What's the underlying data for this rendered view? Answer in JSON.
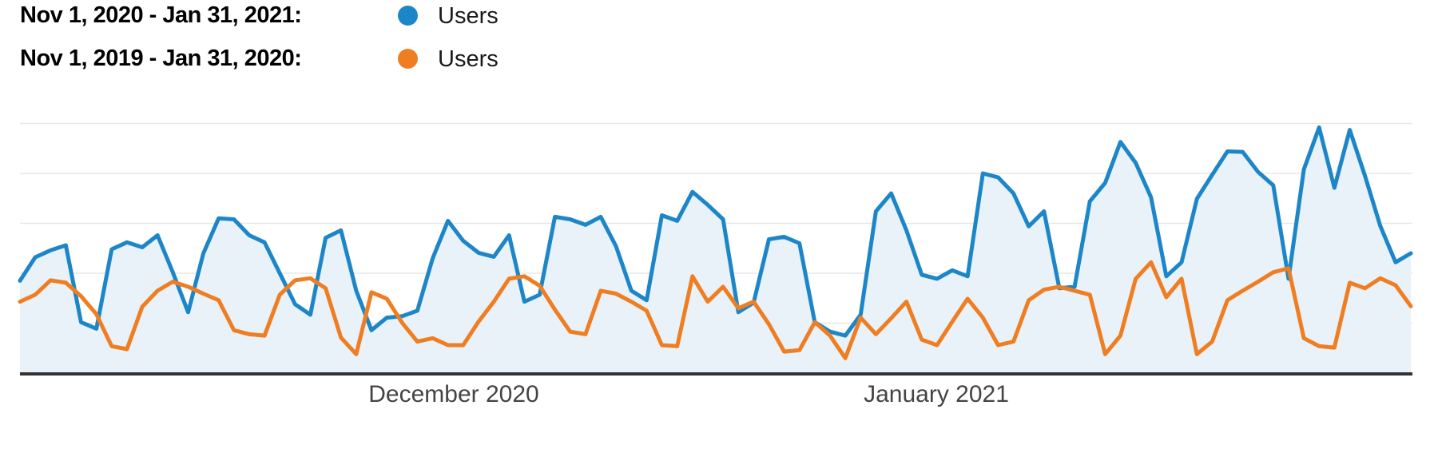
{
  "legend": {
    "rows": [
      {
        "date_range": "Nov 1, 2020 - Jan 31, 2021:",
        "metric": "Users"
      },
      {
        "date_range": "Nov 1, 2019 - Jan 31, 2020:",
        "metric": "Users"
      }
    ]
  },
  "chart_data": {
    "type": "line",
    "title": "",
    "xlabel": "",
    "ylabel": "",
    "x_tick_labels": [
      "December 2020",
      "January 2021"
    ],
    "y_axis": {
      "labels_visible": false,
      "gridline_values": [
        100,
        200,
        300,
        400,
        500
      ],
      "ylim": [
        0,
        540
      ]
    },
    "grid": true,
    "legend_position": "top-left",
    "series": [
      {
        "name": "Users",
        "period": "Nov 1, 2020 - Jan 31, 2021",
        "color": "#1d86c8",
        "area_fill": "#e9f2f8",
        "values": [
          185,
          232,
          246,
          256,
          102,
          89,
          248,
          262,
          252,
          276,
          202,
          122,
          240,
          310,
          308,
          276,
          262,
          200,
          138,
          117,
          271,
          286,
          165,
          86,
          111,
          114,
          125,
          230,
          305,
          265,
          241,
          233,
          276,
          143,
          157,
          313,
          308,
          297,
          313,
          254,
          165,
          146,
          316,
          305,
          363,
          337,
          308,
          122,
          141,
          268,
          273,
          260,
          102,
          83,
          75,
          117,
          324,
          360,
          286,
          197,
          189,
          206,
          194,
          400,
          392,
          360,
          294,
          324,
          170,
          173,
          344,
          381,
          463,
          421,
          352,
          194,
          222,
          349,
          397,
          444,
          443,
          403,
          376,
          189,
          408,
          492,
          371,
          487,
          395,
          295,
          222,
          240
        ]
      },
      {
        "name": "Users",
        "period": "Nov 1, 2019 - Jan 31, 2020",
        "color": "#ef7e23",
        "area_fill": null,
        "values": [
          143,
          157,
          186,
          181,
          154,
          118,
          54,
          48,
          133,
          165,
          183,
          173,
          159,
          146,
          86,
          78,
          75,
          157,
          186,
          190,
          170,
          71,
          38,
          162,
          149,
          101,
          63,
          70,
          56,
          56,
          103,
          143,
          189,
          194,
          175,
          127,
          83,
          78,
          165,
          159,
          143,
          125,
          56,
          54,
          194,
          143,
          173,
          130,
          143,
          98,
          43,
          46,
          102,
          75,
          30,
          111,
          78,
          110,
          143,
          67,
          56,
          103,
          149,
          111,
          56,
          63,
          146,
          167,
          173,
          165,
          157,
          38,
          75,
          189,
          222,
          152,
          189,
          38,
          63,
          146,
          165,
          183,
          202,
          210,
          70,
          54,
          51,
          181,
          170,
          190,
          176,
          134
        ]
      }
    ]
  }
}
